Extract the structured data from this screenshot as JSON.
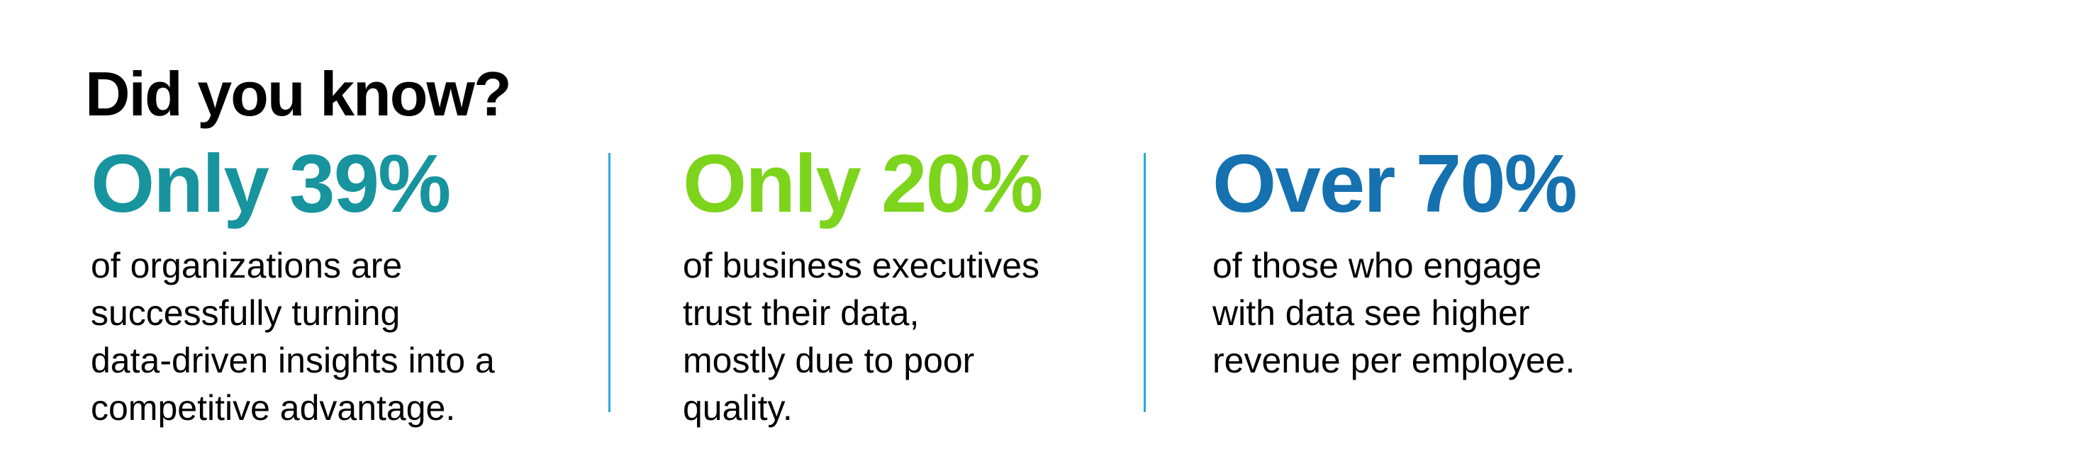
{
  "page": {
    "background": "#ffffff",
    "divider_color": "#2BA9DD"
  },
  "header": {
    "title": "Did you know?"
  },
  "stats": [
    {
      "headline": "Only 39%",
      "color": "#17949E",
      "lines": [
        "of organizations are",
        "successfully turning",
        "data-driven insights into a",
        "competitive advantage."
      ]
    },
    {
      "headline": "Only 20%",
      "color": "#7DD41C",
      "lines": [
        "of business executives",
        "trust their data,",
        "mostly due to poor",
        "quality."
      ]
    },
    {
      "headline": "Over 70%",
      "color": "#1571B0",
      "lines": [
        "of those who engage",
        "with data see higher",
        "revenue per employee."
      ]
    }
  ]
}
